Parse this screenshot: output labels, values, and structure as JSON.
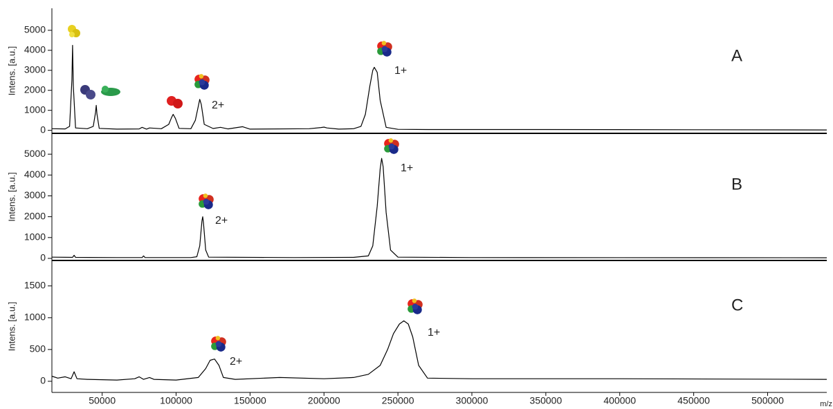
{
  "chart_data": [
    {
      "type": "line",
      "panel_label": "A",
      "y_label": "Intens. [a.u.]",
      "annotations": [
        "2+",
        "1+"
      ],
      "color": "#000000",
      "xlim": [
        16000,
        540000
      ],
      "ylim": [
        -150,
        6100
      ],
      "yticks": [
        0,
        1000,
        2000,
        3000,
        4000,
        5000
      ],
      "x": [
        16000,
        25000,
        28000,
        29500,
        30000,
        30500,
        32000,
        40000,
        44000,
        45500,
        46000,
        46500,
        48000,
        60000,
        75000,
        77000,
        80000,
        82000,
        90000,
        95000,
        97000,
        98000,
        99500,
        102000,
        110000,
        113000,
        115000,
        116000,
        117000,
        119000,
        125000,
        130000,
        135000,
        145000,
        150000,
        190000,
        198000,
        200000,
        202000,
        210000,
        220000,
        225000,
        228000,
        231000,
        233000,
        234000,
        236000,
        238000,
        242000,
        250000,
        270000,
        350000,
        450000,
        540000
      ],
      "values": [
        80,
        70,
        200,
        2500,
        4250,
        2200,
        120,
        80,
        200,
        900,
        1250,
        800,
        100,
        60,
        70,
        150,
        60,
        120,
        80,
        300,
        650,
        800,
        600,
        100,
        80,
        500,
        1200,
        1550,
        1300,
        300,
        90,
        150,
        70,
        180,
        60,
        80,
        140,
        160,
        120,
        60,
        80,
        200,
        800,
        2200,
        3000,
        3150,
        2900,
        1500,
        150,
        50,
        40,
        40,
        30,
        20
      ]
    },
    {
      "type": "line",
      "panel_label": "B",
      "y_label": "Intens. [a.u.]",
      "annotations": [
        "2+",
        "1+"
      ],
      "color": "#000000",
      "xlim": [
        16000,
        540000
      ],
      "ylim": [
        -100,
        6000
      ],
      "yticks": [
        0,
        1000,
        2000,
        3000,
        4000,
        5000
      ],
      "x": [
        16000,
        30000,
        31000,
        32000,
        60000,
        77000,
        78000,
        79000,
        110000,
        114000,
        116000,
        117500,
        118000,
        118500,
        120000,
        122000,
        180000,
        220000,
        230000,
        233000,
        236000,
        238000,
        239000,
        240000,
        242000,
        245000,
        250000,
        300000,
        540000
      ],
      "values": [
        60,
        50,
        150,
        50,
        40,
        40,
        120,
        40,
        40,
        80,
        600,
        1800,
        2000,
        1700,
        400,
        60,
        40,
        50,
        120,
        600,
        2500,
        4300,
        4800,
        4400,
        2200,
        400,
        60,
        40,
        30
      ]
    },
    {
      "type": "line",
      "panel_label": "C",
      "y_label": "Intens. [a.u.]",
      "annotations": [
        "2+",
        "1+"
      ],
      "color": "#000000",
      "x_label": "m/z",
      "xlim": [
        16000,
        540000
      ],
      "ylim": [
        -175,
        1900
      ],
      "yticks": [
        0,
        500,
        1000,
        1500
      ],
      "xticks": [
        50000,
        100000,
        150000,
        200000,
        250000,
        300000,
        350000,
        400000,
        450000,
        500000
      ],
      "x": [
        16000,
        20000,
        25000,
        29000,
        31000,
        33000,
        40000,
        60000,
        72000,
        75000,
        78000,
        82000,
        85000,
        100000,
        115000,
        120000,
        123000,
        126000,
        129000,
        132000,
        140000,
        170000,
        200000,
        220000,
        230000,
        238000,
        243000,
        247000,
        251000,
        254000,
        257000,
        260000,
        264000,
        270000,
        300000,
        400000,
        540000
      ],
      "values": [
        80,
        50,
        70,
        40,
        150,
        40,
        30,
        20,
        40,
        70,
        30,
        60,
        30,
        20,
        60,
        200,
        330,
        350,
        250,
        60,
        30,
        60,
        40,
        60,
        110,
        250,
        500,
        750,
        900,
        950,
        900,
        700,
        250,
        50,
        40,
        40,
        30
      ]
    }
  ]
}
